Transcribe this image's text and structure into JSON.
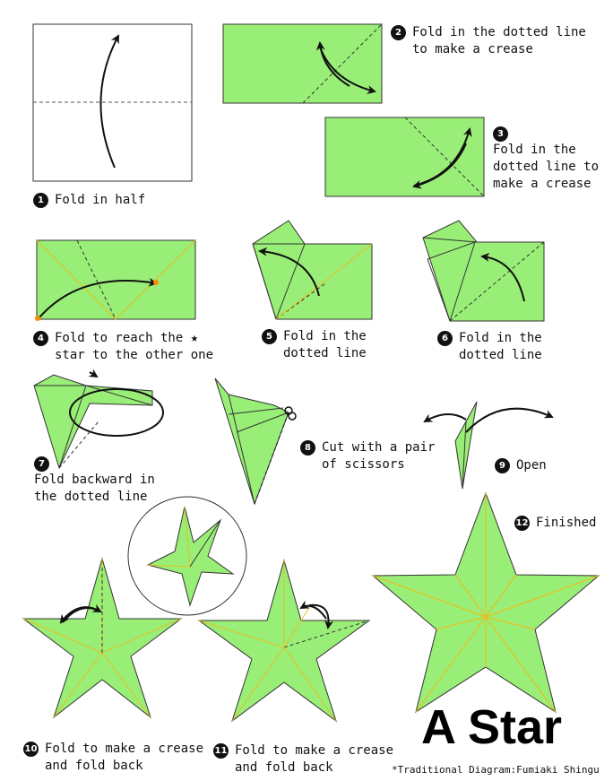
{
  "title": "A Star",
  "credit": "*Traditional Diagram:Fumiaki Shingu",
  "colors": {
    "paper": "#99ee77",
    "edge": "#333333",
    "crease": "#e8c020",
    "marker": "#ff8800"
  },
  "steps": [
    {
      "num": "1",
      "text": "Fold in half"
    },
    {
      "num": "2",
      "text": "Fold in the dotted line\nto make a crease"
    },
    {
      "num": "3",
      "text": "Fold in the\ndotted line to\nmake a crease"
    },
    {
      "num": "4",
      "text": "Fold to reach the ★\nstar to the other one"
    },
    {
      "num": "5",
      "text": "Fold in the\ndotted line"
    },
    {
      "num": "6",
      "text": "Fold in the\ndotted line"
    },
    {
      "num": "7",
      "text": "Fold backward in\nthe dotted line"
    },
    {
      "num": "8",
      "text": "Cut with a pair\nof scissors"
    },
    {
      "num": "9",
      "text": "Open"
    },
    {
      "num": "10",
      "text": "Fold to make a crease\nand fold back"
    },
    {
      "num": "11",
      "text": "Fold to make a crease\nand fold back"
    },
    {
      "num": "12",
      "text": "Finished"
    }
  ]
}
